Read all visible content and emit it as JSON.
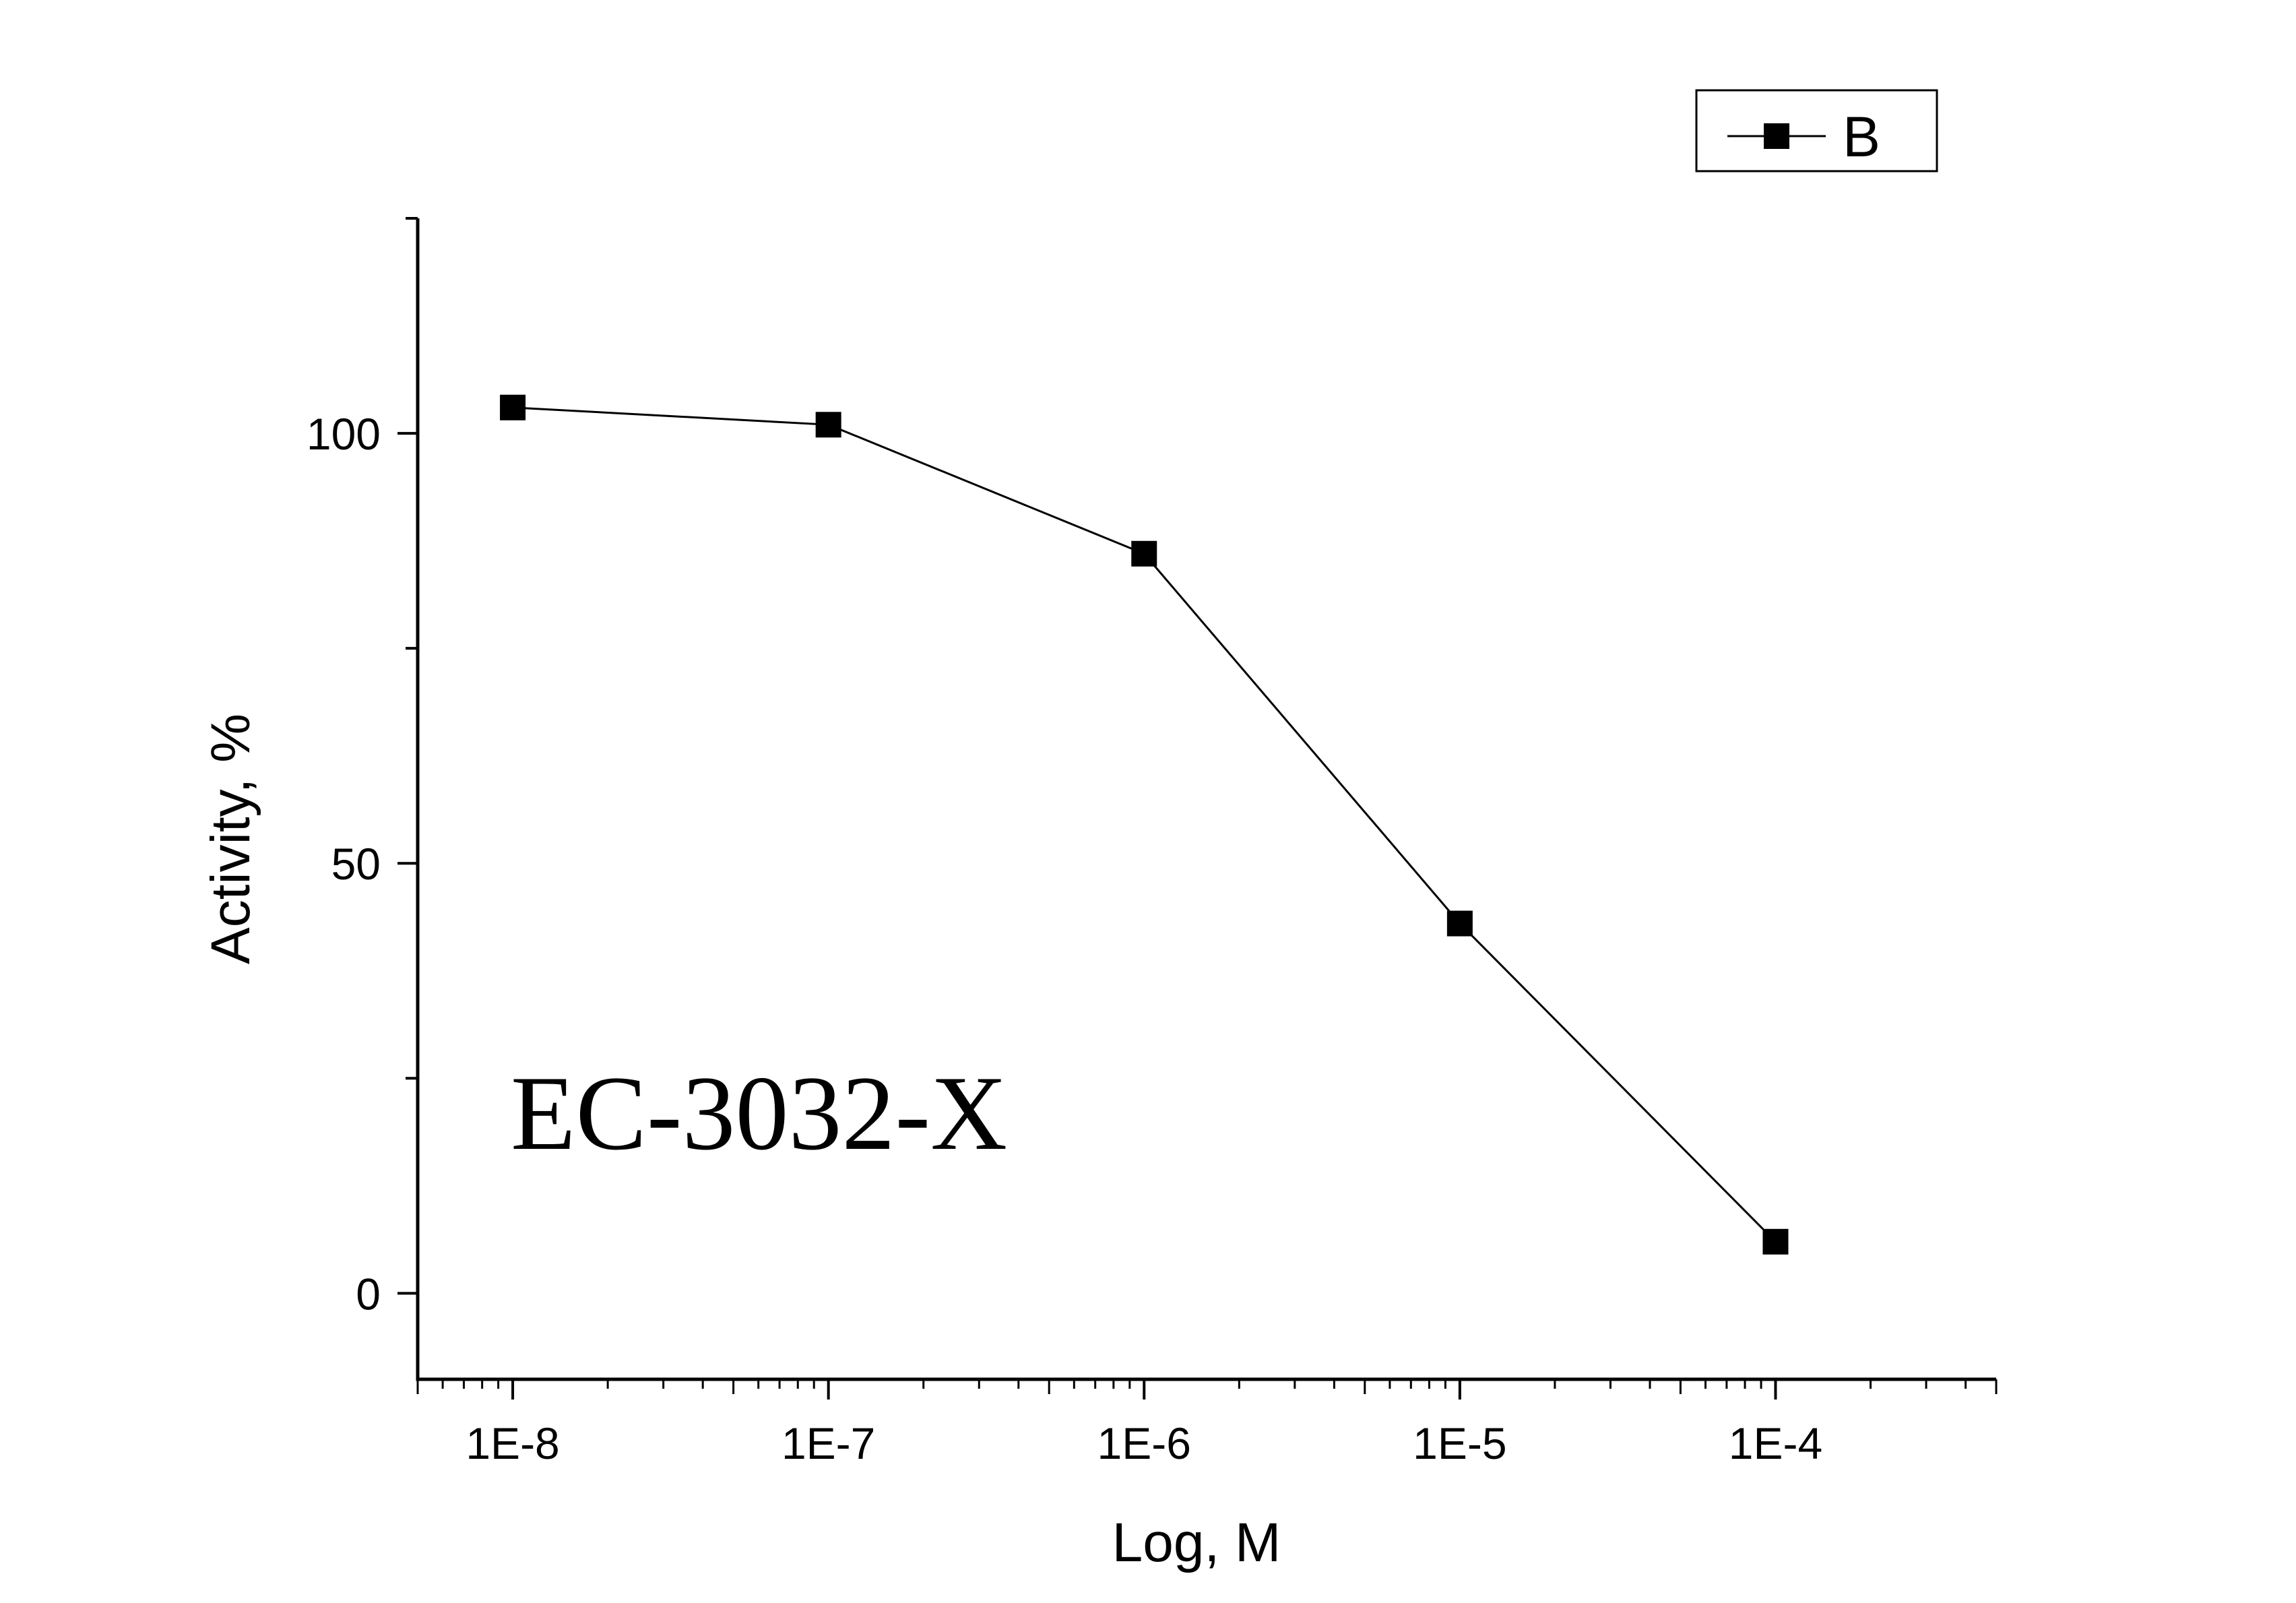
{
  "chart_data": {
    "type": "line",
    "x_scale": "log",
    "x": [
      1e-08,
      1e-07,
      1e-06,
      1e-05,
      0.0001
    ],
    "x_tick_labels": [
      "1E-8",
      "1E-7",
      "1E-6",
      "1E-5",
      "1E-4"
    ],
    "xlim": [
      5e-09,
      0.0005
    ],
    "ylim": [
      -10,
      125
    ],
    "y_ticks": [
      0,
      50,
      100
    ],
    "y_tick_labels": [
      "0",
      "50",
      "100"
    ],
    "xlabel": "Log, M",
    "ylabel": "Activity, %",
    "series": [
      {
        "name": "B",
        "values": [
          103,
          101,
          86,
          43,
          6
        ],
        "marker": "square",
        "color": "#000000"
      }
    ],
    "annotation": "EC-3032-X",
    "legend_position": "top-right",
    "grid": false
  }
}
